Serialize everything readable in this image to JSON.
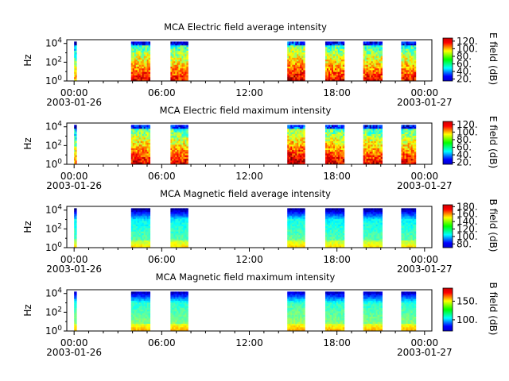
{
  "chart_data": [
    {
      "type": "heatmap",
      "title": "MCA  Electric field average intensity",
      "ylabel": "Hz",
      "colorbar_label": "E field (dB)",
      "colorbar_ticks": [
        "20.",
        "40.",
        "60.",
        "80.",
        "100.",
        "120."
      ],
      "colorbar_range": [
        15,
        128
      ],
      "x_ticks": [
        "00:00",
        "06:00",
        "12:00",
        "18:00",
        "00:00"
      ],
      "date_labels": [
        "2003-01-26",
        "2003-01-27"
      ],
      "y_ticks": [
        "10^0",
        "10^2",
        "10^4"
      ],
      "xlim_hours": [
        -0.5,
        24.5
      ],
      "ylim_log10": [
        0,
        4.4
      ],
      "scale": "log",
      "cmap": "jet",
      "style": "electric",
      "segments": [
        {
          "start": 0.0,
          "end": 0.1,
          "level": 62
        },
        {
          "start": 3.9,
          "end": 5.2,
          "level": 80
        },
        {
          "start": 6.6,
          "end": 7.8,
          "level": 78
        },
        {
          "start": 14.6,
          "end": 15.8,
          "level": 85
        },
        {
          "start": 17.2,
          "end": 18.5,
          "level": 80
        },
        {
          "start": 19.8,
          "end": 21.1,
          "level": 78
        },
        {
          "start": 22.4,
          "end": 23.4,
          "level": 78
        }
      ]
    },
    {
      "type": "heatmap",
      "title": "MCA  Electric field maximum intensity",
      "ylabel": "Hz",
      "colorbar_label": "E field (dB)",
      "colorbar_ticks": [
        "20.",
        "40.",
        "60.",
        "80.",
        "100.",
        "120."
      ],
      "colorbar_range": [
        15,
        128
      ],
      "x_ticks": [
        "00:00",
        "06:00",
        "12:00",
        "18:00",
        "00:00"
      ],
      "date_labels": [
        "2003-01-26",
        "2003-01-27"
      ],
      "y_ticks": [
        "10^0",
        "10^2",
        "10^4"
      ],
      "xlim_hours": [
        -0.5,
        24.5
      ],
      "ylim_log10": [
        0,
        4.4
      ],
      "scale": "log",
      "cmap": "jet",
      "style": "electric",
      "segments": [
        {
          "start": 0.0,
          "end": 0.1,
          "level": 65
        },
        {
          "start": 3.9,
          "end": 5.2,
          "level": 82
        },
        {
          "start": 6.6,
          "end": 7.8,
          "level": 80
        },
        {
          "start": 14.6,
          "end": 15.8,
          "level": 88
        },
        {
          "start": 17.2,
          "end": 18.5,
          "level": 82
        },
        {
          "start": 19.8,
          "end": 21.1,
          "level": 80
        },
        {
          "start": 22.4,
          "end": 23.4,
          "level": 80
        }
      ]
    },
    {
      "type": "heatmap",
      "title": "MCA  Magnetic field average intensity",
      "ylabel": "Hz",
      "colorbar_label": "B field (dB)",
      "colorbar_ticks": [
        "80.",
        "100.",
        "120.",
        "140.",
        "160.",
        "180."
      ],
      "colorbar_range": [
        70,
        185
      ],
      "x_ticks": [
        "00:00",
        "06:00",
        "12:00",
        "18:00",
        "00:00"
      ],
      "date_labels": [
        "2003-01-26",
        "2003-01-27"
      ],
      "y_ticks": [
        "10^0",
        "10^2",
        "10^4"
      ],
      "xlim_hours": [
        -0.5,
        24.5
      ],
      "ylim_log10": [
        0,
        4.4
      ],
      "scale": "log",
      "cmap": "jet",
      "style": "magnetic",
      "segments": [
        {
          "start": 0.0,
          "end": 0.1,
          "level": 120
        },
        {
          "start": 3.9,
          "end": 5.2,
          "level": 120
        },
        {
          "start": 6.6,
          "end": 7.8,
          "level": 120
        },
        {
          "start": 14.6,
          "end": 15.8,
          "level": 122
        },
        {
          "start": 17.2,
          "end": 18.5,
          "level": 120
        },
        {
          "start": 19.8,
          "end": 21.1,
          "level": 120
        },
        {
          "start": 22.4,
          "end": 23.4,
          "level": 120
        }
      ]
    },
    {
      "type": "heatmap",
      "title": "MCA  Magnetic field maximum intensity",
      "ylabel": "Hz",
      "colorbar_label": "B field (dB)",
      "colorbar_ticks": [
        "100.",
        "150."
      ],
      "colorbar_range": [
        70,
        185
      ],
      "x_ticks": [
        "00:00",
        "06:00",
        "12:00",
        "18:00",
        "00:00"
      ],
      "date_labels": [
        "2003-01-26",
        "2003-01-27"
      ],
      "y_ticks": [
        "10^0",
        "10^2",
        "10^4"
      ],
      "xlim_hours": [
        -0.5,
        24.5
      ],
      "ylim_log10": [
        0,
        4.4
      ],
      "scale": "log",
      "cmap": "jet",
      "style": "magnetic",
      "segments": [
        {
          "start": 0.0,
          "end": 0.1,
          "level": 125
        },
        {
          "start": 3.9,
          "end": 5.2,
          "level": 125
        },
        {
          "start": 6.6,
          "end": 7.8,
          "level": 125
        },
        {
          "start": 14.6,
          "end": 15.8,
          "level": 127
        },
        {
          "start": 17.2,
          "end": 18.5,
          "level": 125
        },
        {
          "start": 19.8,
          "end": 21.1,
          "level": 125
        },
        {
          "start": 22.4,
          "end": 23.4,
          "level": 125
        }
      ]
    }
  ]
}
